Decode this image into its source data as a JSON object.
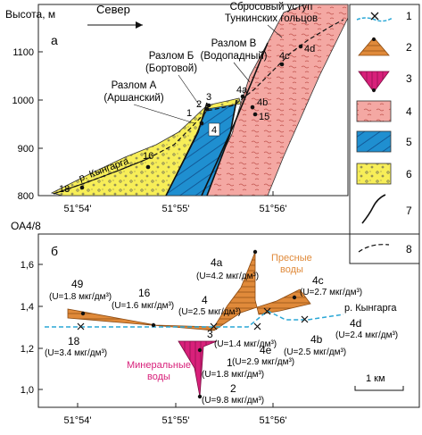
{
  "panel_a": {
    "letter": "а",
    "y_axis_title": "Высота, м",
    "direction_label": "Север",
    "y_ticks": [
      "800",
      "900",
      "1000",
      "1100"
    ],
    "x_ticks": [
      "51°54'",
      "51°55'",
      "51°56'"
    ],
    "fault_a_label_1": "Разлом А",
    "fault_a_label_2": "(Аршанский)",
    "fault_b_label_1": "Разлом Б",
    "fault_b_label_2": "(Бортовой)",
    "fault_v_label_1": "Разлом В",
    "fault_v_label_2": "(Водопадный)",
    "uplift_label_1": "Сбросовый уступ",
    "uplift_label_2": "Тункинских гольцов",
    "river_label": "р. Кынгарга",
    "points": [
      {
        "label": "18"
      },
      {
        "label": "16"
      },
      {
        "label": "1"
      },
      {
        "label": "2"
      },
      {
        "label": "3"
      },
      {
        "label": "4"
      },
      {
        "label": "4a"
      },
      {
        "label": "4b"
      },
      {
        "label": "15"
      },
      {
        "label": "4c"
      },
      {
        "label": "4d"
      }
    ]
  },
  "panel_b": {
    "letter": "б",
    "y_axis_title": "ОА4/8",
    "y_ticks": [
      "1,0",
      "1,2",
      "1,4",
      "1,6"
    ],
    "x_ticks": [
      "51°54'",
      "51°55'",
      "51°56'"
    ],
    "fresh_label_1": "Пресные",
    "fresh_label_2": "воды",
    "mineral_label_1": "Минеральные",
    "mineral_label_2": "воды",
    "river_label": "р. Кынгарга",
    "scale_label": "1 км",
    "annotations": [
      {
        "id": "49",
        "u": "(U=1.8 мкг/дм³)"
      },
      {
        "id": "16",
        "u": "(U=1.6 мкг/дм³)"
      },
      {
        "id": "4",
        "u": "(U=2.5 мкг/дм³)"
      },
      {
        "id": "4a",
        "u": "(U=4.2 мкг/дм³)"
      },
      {
        "id": "4c",
        "u": "(U=2.7 мкг/дм³)"
      },
      {
        "id": "4d",
        "u": "(U=2.4 мкг/дм³)"
      },
      {
        "id": "18",
        "u": "(U=3.4 мкг/дм³)"
      },
      {
        "id": "3",
        "u": "(U=1.4 мкг/дм³)"
      },
      {
        "id": "4e",
        "u": "(U=2.9 мкг/дм³)"
      },
      {
        "id": "4b",
        "u": "(U=2.5 мкг/дм³)"
      },
      {
        "id": "1",
        "u": "(U=1.8 мкг/дм³)"
      },
      {
        "id": "2",
        "u": "(U=9.8 мкг/дм³)"
      }
    ]
  },
  "legend": {
    "numbers": [
      "1",
      "2",
      "3",
      "4",
      "5",
      "6",
      "7",
      "8"
    ]
  },
  "colors": {
    "river": "#2aa7d6",
    "fresh_water": "#e08a3a",
    "mineral_water": "#d8207a",
    "granite_pink": "#f4a8a3",
    "blue_rock": "#1f8fd0",
    "yellow_rock": "#f7ee58"
  }
}
